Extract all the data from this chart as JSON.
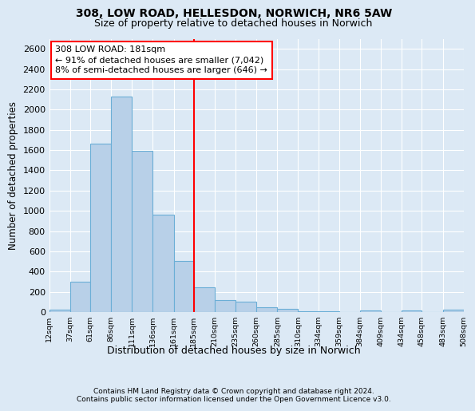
{
  "title1": "308, LOW ROAD, HELLESDON, NORWICH, NR6 5AW",
  "title2": "Size of property relative to detached houses in Norwich",
  "xlabel": "Distribution of detached houses by size in Norwich",
  "ylabel": "Number of detached properties",
  "footer1": "Contains HM Land Registry data © Crown copyright and database right 2024.",
  "footer2": "Contains public sector information licensed under the Open Government Licence v3.0.",
  "annotation_title": "308 LOW ROAD: 181sqm",
  "annotation_line1": "← 91% of detached houses are smaller (7,042)",
  "annotation_line2": "8% of semi-detached houses are larger (646) →",
  "bar_color": "#b8d0e8",
  "bar_edge_color": "#6baed6",
  "background_color": "#dce9f5",
  "grid_color": "#ffffff",
  "red_line_x": 185,
  "bin_edges": [
    12,
    37,
    61,
    86,
    111,
    136,
    161,
    185,
    210,
    235,
    260,
    285,
    310,
    334,
    359,
    384,
    409,
    434,
    458,
    483,
    508
  ],
  "bar_heights": [
    20,
    300,
    1660,
    2130,
    1590,
    960,
    505,
    245,
    120,
    100,
    50,
    30,
    10,
    5,
    2,
    15,
    2,
    15,
    2,
    20
  ],
  "ylim": [
    0,
    2700
  ],
  "yticks": [
    0,
    200,
    400,
    600,
    800,
    1000,
    1200,
    1400,
    1600,
    1800,
    2000,
    2200,
    2400,
    2600
  ],
  "figsize": [
    6.0,
    5.0
  ],
  "dpi": 100
}
